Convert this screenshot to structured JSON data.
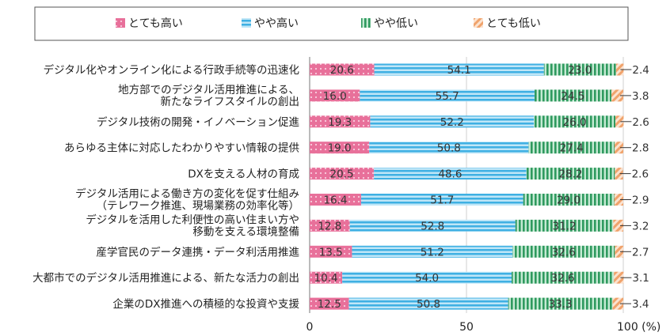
{
  "chart_data": {
    "type": "bar",
    "stacked": true,
    "orientation": "horizontal",
    "title": "",
    "xlabel": "",
    "ylabel": "",
    "xlim": [
      0,
      100
    ],
    "xticks": [
      "0",
      "50",
      "100 (%)"
    ],
    "grid": true,
    "legend_position": "top",
    "categories": [
      [
        "デジタル化やオンライン化による行政手続等の迅速化"
      ],
      [
        "地方部でのデジタル活用推進による、",
        "新たなライフスタイルの創出"
      ],
      [
        "デジタル技術の開発・イノベーション促進"
      ],
      [
        "あらゆる主体に対応したわかりやすい情報の提供"
      ],
      [
        "DXを支える人材の育成"
      ],
      [
        "デジタル活用による働き方の変化を促す仕組み",
        "（テレワーク推進、現場業務の効率化等）"
      ],
      [
        "デジタルを活用した利便性の高い住まい方や",
        "移動を支える環境整備"
      ],
      [
        "産学官民のデータ連携・データ利活用推進"
      ],
      [
        "大都市でのデジタル活用推進による、新たな活力の創出"
      ],
      [
        "企業のDX推進への積極的な投資や支援"
      ]
    ],
    "series": [
      {
        "name": "とても高い",
        "color": "#e8709a",
        "pattern": "dots",
        "values": [
          20.6,
          16.0,
          19.3,
          19.0,
          20.5,
          16.4,
          12.8,
          13.5,
          10.4,
          12.5
        ]
      },
      {
        "name": "やや高い",
        "color": "#4fb8e6",
        "pattern": "horizontal-stripes",
        "values": [
          54.1,
          55.7,
          52.2,
          50.8,
          48.6,
          51.7,
          52.8,
          51.2,
          54.0,
          50.8
        ]
      },
      {
        "name": "やや低い",
        "color": "#3aa36a",
        "pattern": "vertical-stripes",
        "values": [
          23.0,
          24.5,
          26.0,
          27.4,
          28.2,
          29.0,
          31.2,
          32.6,
          32.6,
          33.3
        ]
      },
      {
        "name": "とても低い",
        "color": "#f0a36c",
        "pattern": "diagonal-stripes",
        "values": [
          2.4,
          3.8,
          2.6,
          2.8,
          2.6,
          2.9,
          3.2,
          2.7,
          3.1,
          3.4
        ]
      }
    ]
  }
}
